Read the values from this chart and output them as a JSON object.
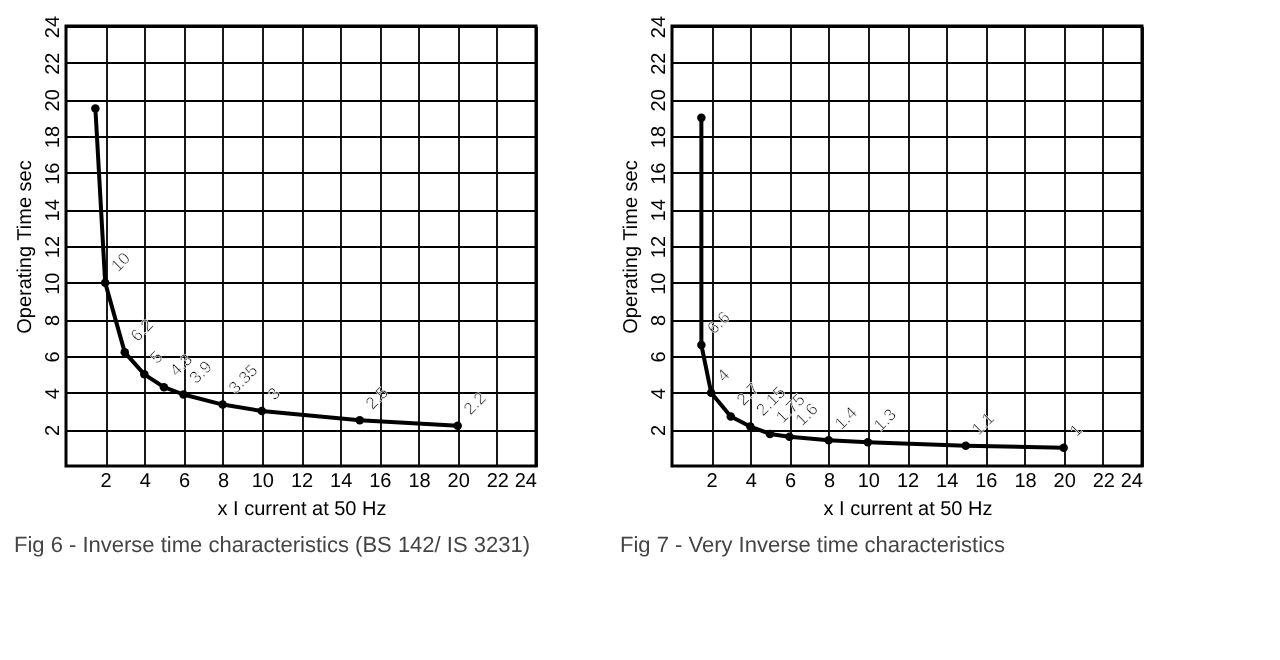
{
  "chart_data": [
    {
      "type": "line",
      "xlabel": "x I current at 50 Hz",
      "ylabel": "Operating Time sec",
      "xlim": [
        0,
        24
      ],
      "ylim": [
        0,
        24
      ],
      "xticks": [
        2,
        4,
        6,
        8,
        10,
        12,
        14,
        16,
        18,
        20,
        22,
        24
      ],
      "yticks": [
        2,
        4,
        6,
        8,
        10,
        12,
        14,
        16,
        18,
        20,
        22,
        24
      ],
      "grid": true,
      "marker": "circle",
      "line_style": "solid",
      "x": [
        1.5,
        2,
        3,
        4,
        5,
        6,
        8,
        10,
        15,
        20
      ],
      "series": [
        {
          "color": "#000000",
          "values": [
            19.5,
            10,
            6.2,
            5,
            4.3,
            3.9,
            3.35,
            3,
            2.5,
            2.2
          ],
          "value_labels": [
            null,
            "10",
            "6.2",
            "5",
            "4.3",
            "3.9",
            "3.35",
            "3",
            "2.5",
            "2.2"
          ]
        }
      ],
      "annotations": [
        "Fig 6 - Inverse time characteristics (BS 142/ IS 3231)"
      ]
    },
    {
      "type": "line",
      "xlabel": "x I current at 50 Hz",
      "ylabel": "Operating Time sec",
      "xlim": [
        0,
        24
      ],
      "ylim": [
        0,
        24
      ],
      "xticks": [
        2,
        4,
        6,
        8,
        10,
        12,
        14,
        16,
        18,
        20,
        22,
        24
      ],
      "yticks": [
        2,
        4,
        6,
        8,
        10,
        12,
        14,
        16,
        18,
        20,
        22,
        24
      ],
      "grid": true,
      "marker": "circle",
      "line_style": "solid",
      "x": [
        1.5,
        1.5,
        2,
        3,
        4,
        5,
        6,
        8,
        10,
        15,
        20
      ],
      "series": [
        {
          "color": "#000000",
          "values": [
            19,
            6.6,
            4,
            2.7,
            2.15,
            1.75,
            1.6,
            1.4,
            1.3,
            1.1,
            1
          ],
          "value_labels": [
            null,
            "6.6",
            "4",
            "2.7",
            "2.15",
            "1.75",
            "1.6",
            "1.4",
            "1.3",
            "1.1",
            "1"
          ]
        }
      ],
      "annotations": [
        "Fig 7 - Very Inverse time characteristics"
      ]
    }
  ]
}
